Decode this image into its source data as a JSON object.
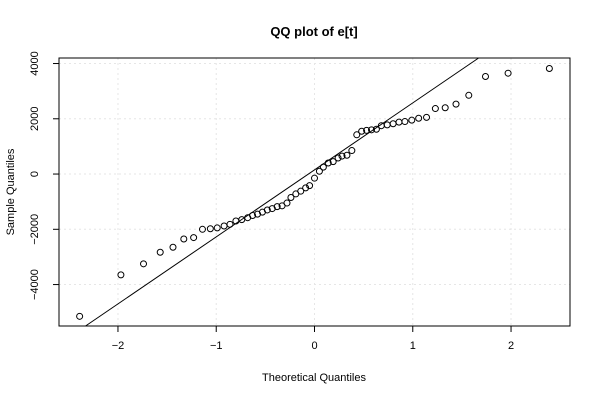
{
  "chart_data": {
    "type": "scatter",
    "title": "QQ plot of e[t]",
    "xlabel": "Theoretical Quantiles",
    "ylabel": "Sample Quantiles",
    "xlim": [
      -2.6,
      2.6
    ],
    "ylim": [
      -5500,
      4200
    ],
    "x_ticks": [
      -2,
      -1,
      0,
      1,
      2
    ],
    "y_ticks": [
      -4000,
      -2000,
      0,
      2000,
      4000
    ],
    "x_tick_labels": [
      "−2",
      "−1",
      "0",
      "1",
      "2"
    ],
    "y_tick_labels": [
      "−4000",
      "−2000",
      "0",
      "2000",
      "4000"
    ],
    "grid": true,
    "reference_line": {
      "x": [
        -2.33,
        1.67
      ],
      "y": [
        -5500,
        4200
      ]
    },
    "points": [
      {
        "x": -2.39,
        "y": -5150
      },
      {
        "x": -1.97,
        "y": -3650
      },
      {
        "x": -1.74,
        "y": -3250
      },
      {
        "x": -1.57,
        "y": -2830
      },
      {
        "x": -1.44,
        "y": -2650
      },
      {
        "x": -1.33,
        "y": -2350
      },
      {
        "x": -1.23,
        "y": -2300
      },
      {
        "x": -1.14,
        "y": -2000
      },
      {
        "x": -1.06,
        "y": -1980
      },
      {
        "x": -0.99,
        "y": -1950
      },
      {
        "x": -0.92,
        "y": -1880
      },
      {
        "x": -0.86,
        "y": -1820
      },
      {
        "x": -0.8,
        "y": -1700
      },
      {
        "x": -0.74,
        "y": -1650
      },
      {
        "x": -0.68,
        "y": -1580
      },
      {
        "x": -0.63,
        "y": -1500
      },
      {
        "x": -0.58,
        "y": -1450
      },
      {
        "x": -0.53,
        "y": -1380
      },
      {
        "x": -0.48,
        "y": -1300
      },
      {
        "x": -0.43,
        "y": -1250
      },
      {
        "x": -0.38,
        "y": -1180
      },
      {
        "x": -0.33,
        "y": -1150
      },
      {
        "x": -0.28,
        "y": -1050
      },
      {
        "x": -0.24,
        "y": -850
      },
      {
        "x": -0.19,
        "y": -720
      },
      {
        "x": -0.14,
        "y": -620
      },
      {
        "x": -0.09,
        "y": -500
      },
      {
        "x": -0.05,
        "y": -420
      },
      {
        "x": 0.0,
        "y": -150
      },
      {
        "x": 0.05,
        "y": 100
      },
      {
        "x": 0.09,
        "y": 250
      },
      {
        "x": 0.14,
        "y": 400
      },
      {
        "x": 0.19,
        "y": 450
      },
      {
        "x": 0.24,
        "y": 580
      },
      {
        "x": 0.28,
        "y": 650
      },
      {
        "x": 0.33,
        "y": 680
      },
      {
        "x": 0.38,
        "y": 850
      },
      {
        "x": 0.43,
        "y": 1420
      },
      {
        "x": 0.48,
        "y": 1550
      },
      {
        "x": 0.53,
        "y": 1580
      },
      {
        "x": 0.58,
        "y": 1600
      },
      {
        "x": 0.63,
        "y": 1620
      },
      {
        "x": 0.68,
        "y": 1750
      },
      {
        "x": 0.74,
        "y": 1780
      },
      {
        "x": 0.8,
        "y": 1820
      },
      {
        "x": 0.86,
        "y": 1880
      },
      {
        "x": 0.92,
        "y": 1900
      },
      {
        "x": 0.99,
        "y": 1950
      },
      {
        "x": 1.06,
        "y": 2020
      },
      {
        "x": 1.14,
        "y": 2050
      },
      {
        "x": 1.23,
        "y": 2370
      },
      {
        "x": 1.33,
        "y": 2400
      },
      {
        "x": 1.44,
        "y": 2530
      },
      {
        "x": 1.57,
        "y": 2850
      },
      {
        "x": 1.74,
        "y": 3530
      },
      {
        "x": 1.97,
        "y": 3650
      },
      {
        "x": 2.39,
        "y": 3820
      }
    ]
  }
}
